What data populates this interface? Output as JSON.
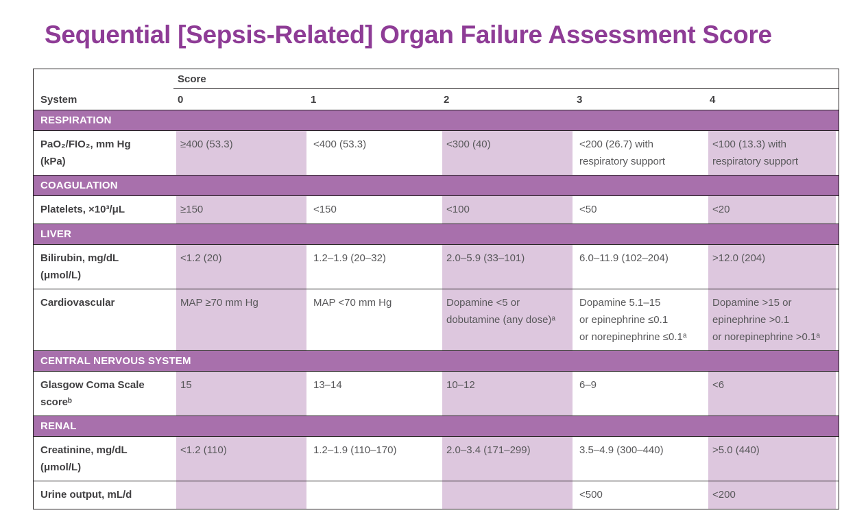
{
  "title": "Sequential [Sepsis-Related] Organ Failure Assessment Score",
  "colors": {
    "title_purple": "#8e3c96",
    "section_band_purple": "#a870ac",
    "shaded_cell_purple": "#ddc7de",
    "table_border": "#231f20",
    "value_text": "#58585a",
    "label_text": "#414042"
  },
  "table": {
    "score_header": "Score",
    "system_header": "System",
    "score_columns": [
      "0",
      "1",
      "2",
      "3",
      "4"
    ],
    "sections": [
      {
        "header": "RESPIRATION",
        "rows": [
          {
            "label": "PaO₂/FIO₂, mm Hg\n(kPa)",
            "values": [
              "≥400 (53.3)",
              "<400 (53.3)",
              "<300 (40)",
              "<200 (26.7) with\nrespiratory support",
              "<100 (13.3) with\nrespiratory support"
            ]
          }
        ]
      },
      {
        "header": "COAGULATION",
        "rows": [
          {
            "label": "Platelets, ×10³/μL",
            "values": [
              "≥150",
              "<150",
              "<100",
              "<50",
              "<20"
            ]
          }
        ]
      },
      {
        "header": "LIVER",
        "rows": [
          {
            "label": "Bilirubin, mg/dL\n(μmol/L)",
            "values": [
              "<1.2 (20)",
              "1.2–1.9 (20–32)",
              "2.0–5.9 (33–101)",
              "6.0–11.9 (102–204)",
              ">12.0 (204)"
            ]
          },
          {
            "label": "Cardiovascular",
            "values": [
              "MAP ≥70 mm Hg",
              "MAP <70 mm Hg",
              "Dopamine <5 or\ndobutamine (any dose)ᵃ",
              "Dopamine 5.1–15\nor epinephrine ≤0.1\nor norepinephrine ≤0.1ᵃ",
              "Dopamine >15 or\nepinephrine >0.1\nor norepinephrine >0.1ᵃ"
            ]
          }
        ]
      },
      {
        "header": "CENTRAL NERVOUS SYSTEM",
        "rows": [
          {
            "label": "Glasgow Coma Scale\nscoreᵇ",
            "values": [
              "15",
              "13–14",
              "10–12",
              "6–9",
              "<6"
            ]
          }
        ]
      },
      {
        "header": "RENAL",
        "rows": [
          {
            "label": "Creatinine, mg/dL\n(μmol/L)",
            "values": [
              "<1.2 (110)",
              "1.2–1.9 (110–170)",
              "2.0–3.4 (171–299)",
              "3.5–4.9 (300–440)",
              ">5.0 (440)"
            ]
          },
          {
            "label": "Urine output, mL/d",
            "values": [
              "",
              "",
              "",
              "<500",
              "<200"
            ]
          }
        ]
      }
    ]
  }
}
